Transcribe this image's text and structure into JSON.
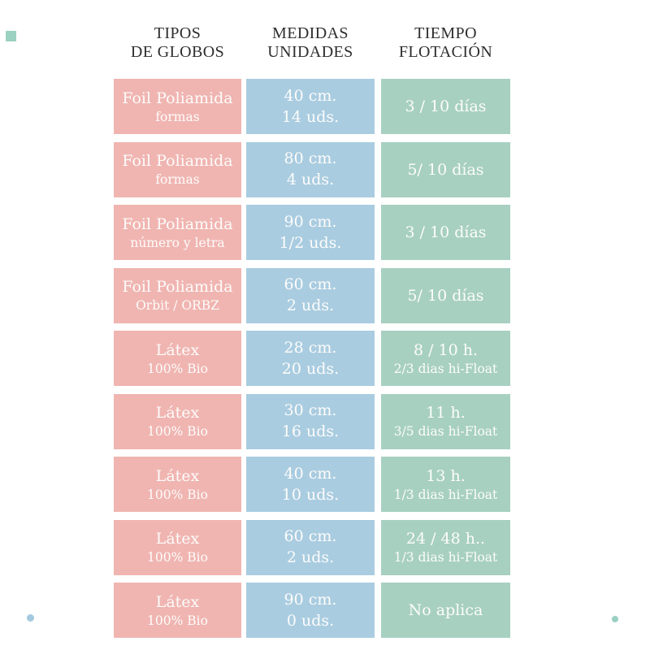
{
  "colors": {
    "pink_cell": "#f0b5b1",
    "blue_cell": "#a9cce0",
    "green_cell": "#a7d0c1",
    "header_text": "#2e2e2e",
    "cell_text": "#fdfcfb",
    "decor_square_teal": "#9bd1c1",
    "decor_dot_blue": "#a3c9de",
    "decor_dot_teal": "#9bcfc3"
  },
  "headers": [
    {
      "line1": "TIPOS",
      "line2": "DE GLOBOS"
    },
    {
      "line1": "MEDIDAS",
      "line2": "UNIDADES"
    },
    {
      "line1": "TIEMPO",
      "line2": "FLOTACIÓN"
    }
  ],
  "rows": [
    {
      "tipo_main": "Foil Poliamida",
      "tipo_sub": "formas",
      "medida_main": "40 cm.",
      "medida_sub": "14 uds.",
      "tiempo_main": "3 / 10 días",
      "tiempo_sub": ""
    },
    {
      "tipo_main": "Foil Poliamida",
      "tipo_sub": "formas",
      "medida_main": "80 cm.",
      "medida_sub": "4 uds.",
      "tiempo_main": "5/ 10 días",
      "tiempo_sub": ""
    },
    {
      "tipo_main": "Foil Poliamida",
      "tipo_sub": "número y letra",
      "medida_main": "90 cm.",
      "medida_sub": "1/2 uds.",
      "tiempo_main": "3 / 10 días",
      "tiempo_sub": ""
    },
    {
      "tipo_main": "Foil Poliamida",
      "tipo_sub": "Orbit / ORBZ",
      "medida_main": "60 cm.",
      "medida_sub": "2 uds.",
      "tiempo_main": "5/ 10 días",
      "tiempo_sub": ""
    },
    {
      "tipo_main": "Látex",
      "tipo_sub": "100% Bio",
      "medida_main": "28 cm.",
      "medida_sub": "20 uds.",
      "tiempo_main": "8 / 10 h.",
      "tiempo_sub": "2/3 dias hi-Float"
    },
    {
      "tipo_main": "Látex",
      "tipo_sub": "100% Bio",
      "medida_main": "30 cm.",
      "medida_sub": "16 uds.",
      "tiempo_main": "11 h.",
      "tiempo_sub": "3/5 dias hi-Float"
    },
    {
      "tipo_main": "Látex",
      "tipo_sub": "100% Bio",
      "medida_main": "40 cm.",
      "medida_sub": "10 uds.",
      "tiempo_main": "13 h.",
      "tiempo_sub": "1/3 dias hi-Float"
    },
    {
      "tipo_main": "Látex",
      "tipo_sub": "100% Bio",
      "medida_main": "60 cm.",
      "medida_sub": "2 uds.",
      "tiempo_main": "24 / 48 h..",
      "tiempo_sub": "1/3 dias hi-Float"
    },
    {
      "tipo_main": "Látex",
      "tipo_sub": "100% Bio",
      "medida_main": "90 cm.",
      "medida_sub": "0 uds.",
      "tiempo_main": "No aplica",
      "tiempo_sub": ""
    }
  ],
  "chart_data": {
    "type": "table",
    "title": "",
    "columns": [
      "TIPOS DE GLOBOS",
      "MEDIDAS UNIDADES",
      "TIEMPO FLOTACIÓN"
    ],
    "rows": [
      [
        "Foil Poliamida (formas)",
        "40 cm. / 14 uds.",
        "3 / 10 días"
      ],
      [
        "Foil Poliamida (formas)",
        "80 cm. / 4 uds.",
        "5/ 10 días"
      ],
      [
        "Foil Poliamida (número y letra)",
        "90 cm. / 1/2 uds.",
        "3 / 10 días"
      ],
      [
        "Foil Poliamida (Orbit / ORBZ)",
        "60 cm. / 2 uds.",
        "5/ 10 días"
      ],
      [
        "Látex 100% Bio",
        "28 cm. / 20 uds.",
        "8 / 10 h. — 2/3 dias hi-Float"
      ],
      [
        "Látex 100% Bio",
        "30 cm. / 16 uds.",
        "11 h. — 3/5 dias hi-Float"
      ],
      [
        "Látex 100% Bio",
        "40 cm. / 10 uds.",
        "13 h. — 1/3 dias hi-Float"
      ],
      [
        "Látex 100% Bio",
        "60 cm. / 2 uds.",
        "24 / 48 h.. — 1/3 dias hi-Float"
      ],
      [
        "Látex 100% Bio",
        "90 cm. / 0 uds.",
        "No aplica"
      ]
    ],
    "layout": {
      "grid": false,
      "legend": "none",
      "cell_colors_by_column": [
        "#f0b5b1",
        "#a9cce0",
        "#a7d0c1"
      ]
    }
  }
}
